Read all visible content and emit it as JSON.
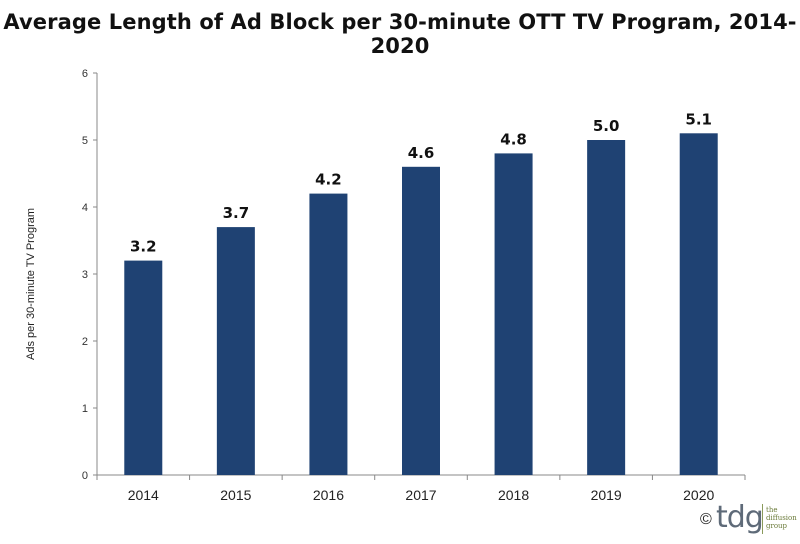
{
  "chart_data": {
    "type": "bar",
    "title": "Average Length of Ad Block per 30-minute OTT TV Program, 2014-2020",
    "ylabel": "Ads per 30-minute TV Program",
    "xlabel": "",
    "categories": [
      "2014",
      "2015",
      "2016",
      "2017",
      "2018",
      "2019",
      "2020"
    ],
    "values": [
      3.2,
      3.7,
      4.2,
      4.6,
      4.8,
      5.0,
      5.1
    ],
    "value_labels": [
      "3.2",
      "3.7",
      "4.2",
      "4.6",
      "4.8",
      "5.0",
      "5.1"
    ],
    "yticks": [
      "0",
      "1",
      "2",
      "3",
      "4",
      "5",
      "6"
    ],
    "ylim": [
      0,
      6
    ],
    "grid": false,
    "legend": "none",
    "bar_color": "#1f4273"
  },
  "branding": {
    "copyright": "©",
    "logo_text": "tdg",
    "tagline": [
      "the",
      "diffusion",
      "group"
    ]
  }
}
